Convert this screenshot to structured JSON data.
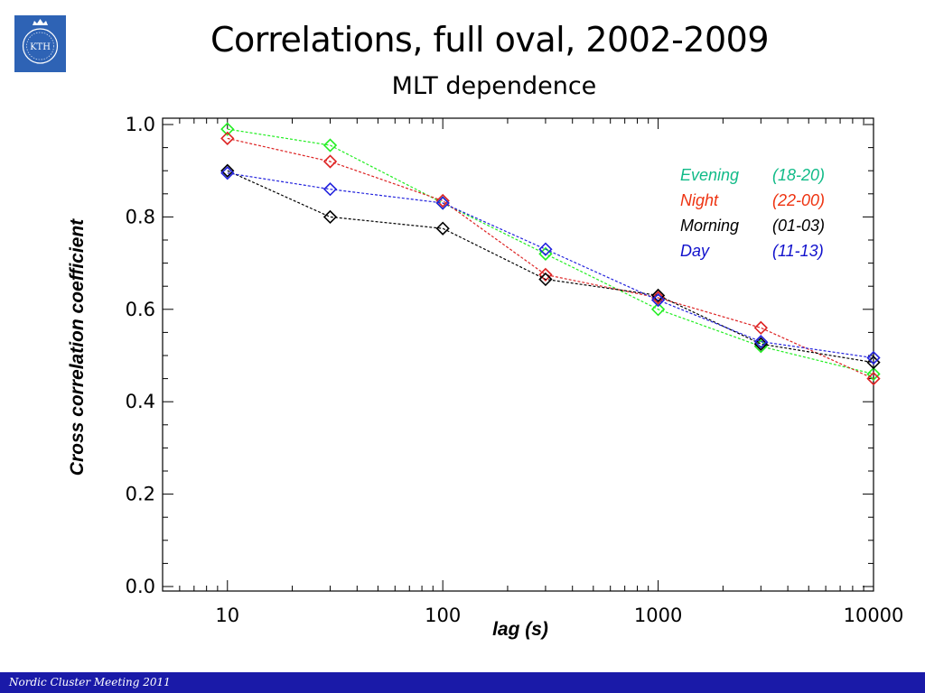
{
  "slide": {
    "title": "Correlations, full oval, 2002-2009",
    "subtitle": "MLT dependence",
    "footer": "Nordic Cluster Meeting 2011",
    "logo_text": "KTH"
  },
  "colors": {
    "footer_bg": "#1a1aa8",
    "logo_bg": "#2e63b5"
  },
  "chart_data": {
    "type": "line",
    "xscale": "log",
    "xlabel": "lag (s)",
    "ylabel": "Cross correlation coefficient",
    "xlim": [
      5,
      10000
    ],
    "ylim": [
      0,
      1.0
    ],
    "x_ticks": [
      10,
      100,
      1000,
      10000
    ],
    "x_tick_labels": [
      "10",
      "100",
      "1000",
      "10000"
    ],
    "y_ticks": [
      0.0,
      0.2,
      0.4,
      0.6,
      0.8,
      1.0
    ],
    "y_tick_labels": [
      "0.0",
      "0.2",
      "0.4",
      "0.6",
      "0.8",
      "1.0"
    ],
    "grid": false,
    "legend_position": "top-right",
    "x": [
      10,
      30,
      100,
      300,
      1000,
      3000,
      10000
    ],
    "series": [
      {
        "name": "Evening",
        "range": "(18-20)",
        "color": "#22ee22",
        "legend_color": "#11bb88",
        "values": [
          0.99,
          0.955,
          0.83,
          0.72,
          0.6,
          0.52,
          0.46
        ]
      },
      {
        "name": "Night",
        "range": "(22-00)",
        "color": "#dd2222",
        "legend_color": "#ee3311",
        "values": [
          0.97,
          0.92,
          0.835,
          0.675,
          0.625,
          0.56,
          0.45
        ]
      },
      {
        "name": "Morning",
        "range": "(01-03)",
        "color": "#000000",
        "legend_color": "#000000",
        "values": [
          0.9,
          0.8,
          0.775,
          0.665,
          0.63,
          0.525,
          0.485
        ]
      },
      {
        "name": "Day",
        "range": "(11-13)",
        "color": "#2222dd",
        "legend_color": "#1111cc",
        "values": [
          0.895,
          0.86,
          0.83,
          0.73,
          0.62,
          0.53,
          0.495
        ]
      }
    ]
  }
}
